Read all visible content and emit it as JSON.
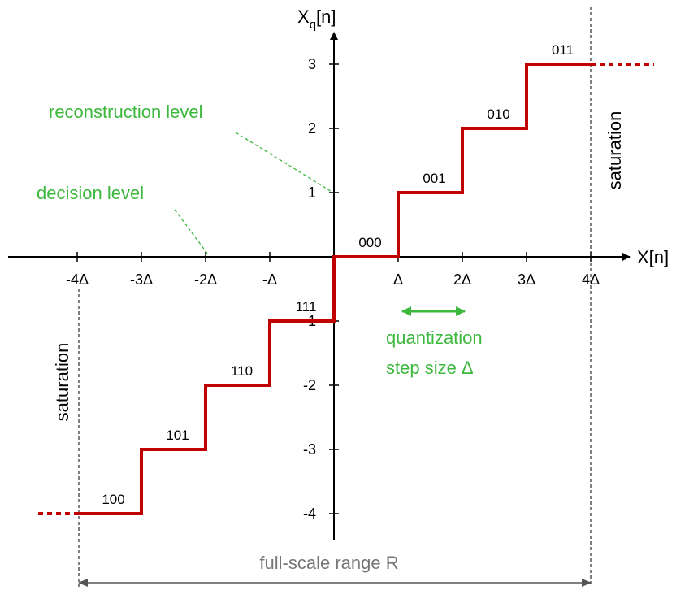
{
  "axes": {
    "x_label": "X[n]",
    "y_label": "X",
    "y_label_sub": "q",
    "y_label_suffix": "[n]",
    "x_ticks": [
      "-4Δ",
      "-3Δ",
      "-2Δ",
      "-Δ",
      "Δ",
      "2Δ",
      "3Δ",
      "4Δ"
    ],
    "y_ticks": [
      "3",
      "2",
      "1",
      "-1",
      "-2",
      "-3",
      "-4"
    ]
  },
  "levels": [
    {
      "code": "100"
    },
    {
      "code": "101"
    },
    {
      "code": "110"
    },
    {
      "code": "111"
    },
    {
      "code": "000"
    },
    {
      "code": "001"
    },
    {
      "code": "010"
    },
    {
      "code": "011"
    }
  ],
  "annotations": {
    "reconstruction_level": "reconstruction level",
    "decision_level": "decision level",
    "saturation_right": "saturation",
    "saturation_left": "saturation",
    "step_size_line1": "quantization",
    "step_size_line2": "step size Δ",
    "full_scale_range": "full-scale range R"
  }
}
